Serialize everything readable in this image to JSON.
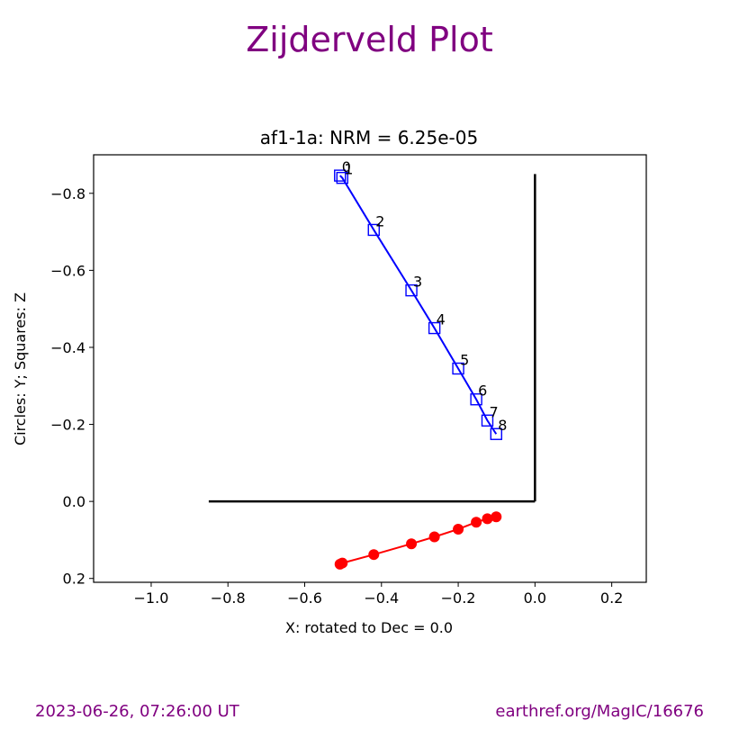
{
  "page": {
    "title": "Zijderveld Plot",
    "footer_left": "2023-06-26, 07:26:00 UT",
    "footer_right": "earthref.org/MagIC/16676",
    "title_color": "#800080"
  },
  "chart_data": {
    "type": "scatter",
    "title": "af1-1a: NRM =  6.25e-05",
    "xlabel": "X: rotated to Dec =     0.0",
    "ylabel": "Circles: Y; Squares: Z",
    "xlim": [
      -1.15,
      0.29
    ],
    "ylim": [
      0.21,
      -0.9
    ],
    "y_inverted": true,
    "grid": false,
    "x_ticks": [
      -1.0,
      -0.8,
      -0.6,
      -0.4,
      -0.2,
      0.0,
      0.2
    ],
    "x_tick_labels": [
      "−1.0",
      "−0.8",
      "−0.6",
      "−0.4",
      "−0.2",
      "0.0",
      "0.2"
    ],
    "y_ticks": [
      -0.8,
      -0.6,
      -0.4,
      -0.2,
      0.0,
      0.2
    ],
    "y_tick_labels": [
      "−0.8",
      "−0.6",
      "−0.4",
      "−0.2",
      "0.0",
      "0.2"
    ],
    "axes_lines": {
      "x_from": -0.85,
      "x_to": 0.0,
      "y_from": 0.0,
      "y_to": -0.85,
      "color": "#000000"
    },
    "step_labels": [
      "0",
      "1",
      "2",
      "3",
      "4",
      "5",
      "6",
      "7",
      "8"
    ],
    "x": [
      -0.508,
      -0.502,
      -0.42,
      -0.322,
      -0.262,
      -0.2,
      -0.153,
      -0.124,
      -0.101
    ],
    "series": [
      {
        "name": "Y",
        "marker": "circle",
        "color": "#ff0000",
        "values": [
          0.163,
          0.16,
          0.138,
          0.11,
          0.092,
          0.072,
          0.054,
          0.045,
          0.04
        ]
      },
      {
        "name": "Z",
        "marker": "square",
        "color": "#0000ff",
        "values": [
          -0.846,
          -0.84,
          -0.705,
          -0.548,
          -0.45,
          -0.345,
          -0.265,
          -0.21,
          -0.175
        ]
      }
    ]
  }
}
